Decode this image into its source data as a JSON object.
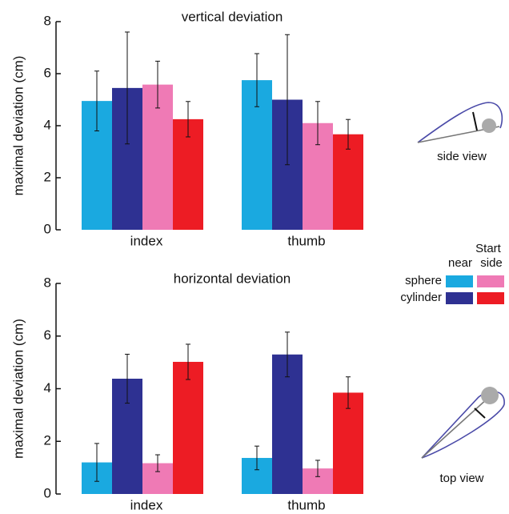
{
  "chart_data": [
    {
      "type": "bar",
      "title": "vertical deviation",
      "ylabel": "maximal deviation (cm)",
      "categories": [
        "index",
        "thumb"
      ],
      "series": [
        {
          "color": "#1aa9e0",
          "values": [
            4.95,
            5.75
          ],
          "errors": [
            1.15,
            1.02
          ]
        },
        {
          "color": "#2e3192",
          "values": [
            5.45,
            5.0
          ],
          "errors": [
            2.15,
            2.5
          ]
        },
        {
          "color": "#ef7ab5",
          "values": [
            5.58,
            4.1
          ],
          "errors": [
            0.9,
            0.83
          ]
        },
        {
          "color": "#ed1c24",
          "values": [
            4.25,
            3.67
          ],
          "errors": [
            0.68,
            0.57
          ]
        }
      ],
      "ylim": [
        0,
        8
      ],
      "yticks": [
        0,
        2,
        4,
        6,
        8
      ],
      "annotation": "side view"
    },
    {
      "type": "bar",
      "title": "horizontal deviation",
      "ylabel": "maximal deviation (cm)",
      "categories": [
        "index",
        "thumb"
      ],
      "series": [
        {
          "color": "#1aa9e0",
          "values": [
            1.2,
            1.37
          ],
          "errors": [
            0.72,
            0.45
          ]
        },
        {
          "color": "#2e3192",
          "values": [
            4.38,
            5.3
          ],
          "errors": [
            0.93,
            0.85
          ]
        },
        {
          "color": "#ef7ab5",
          "values": [
            1.17,
            0.97
          ],
          "errors": [
            0.32,
            0.31
          ]
        },
        {
          "color": "#ed1c24",
          "values": [
            5.02,
            3.85
          ],
          "errors": [
            0.67,
            0.6
          ]
        }
      ],
      "ylim": [
        0,
        8
      ],
      "yticks": [
        0,
        2,
        4,
        6,
        8
      ],
      "annotation": "top view",
      "legend": {
        "title": "Start",
        "columns": [
          "near",
          "side"
        ],
        "rows": [
          "sphere",
          "cylinder"
        ]
      }
    }
  ]
}
